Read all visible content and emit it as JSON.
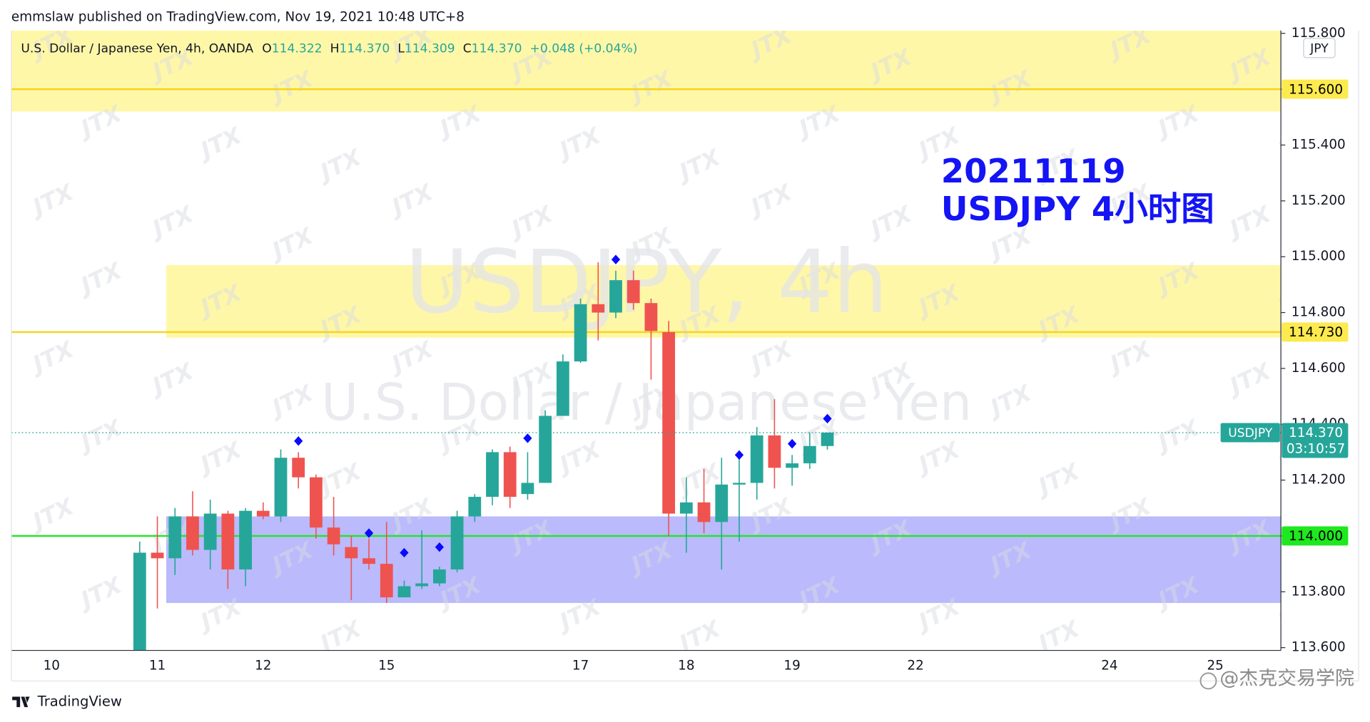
{
  "header": {
    "publisher": "emmslaw published on TradingView.com, Nov 19, 2021 10:48 UTC+8",
    "brand": "TradingView",
    "credit": "@杰克交易学院"
  },
  "chart_data": {
    "type": "candlestick",
    "symbol_line": "U.S. Dollar / Japanese Yen, 4h, OANDA",
    "ohlc_legend": [
      {
        "label": "O",
        "value": "114.322"
      },
      {
        "label": "H",
        "value": "114.370"
      },
      {
        "label": "L",
        "value": "114.309"
      },
      {
        "label": "C",
        "value": "114.370"
      }
    ],
    "change": "+0.048 (+0.04%)",
    "watermark_title": "USDJPY, 4h",
    "watermark_subtitle": "U.S. Dollar / Japanese Yen",
    "watermark_logo": "JTX",
    "annotation": [
      "20211119",
      "USDJPY 4小时图"
    ],
    "currency": "JPY",
    "categories": [
      null,
      null,
      "10",
      null,
      null,
      null,
      null,
      null,
      "11",
      null,
      null,
      null,
      null,
      null,
      "12",
      null,
      null,
      null,
      null,
      null,
      null,
      "15",
      null,
      null,
      null,
      null,
      null,
      null,
      null,
      null,
      null,
      null,
      "17",
      null,
      null,
      null,
      null,
      null,
      "18",
      null,
      null,
      null,
      null,
      null,
      "19",
      null,
      null,
      null,
      null,
      null,
      null,
      "22",
      null,
      null,
      null,
      null,
      null,
      null,
      null,
      null,
      null,
      null,
      "24",
      null,
      null,
      null,
      null,
      null,
      "25",
      null,
      null,
      null
    ],
    "open": [
      null,
      null,
      null,
      null,
      null,
      null,
      null,
      113.58,
      113.94,
      113.92,
      114.07,
      113.95,
      114.08,
      113.88,
      114.09,
      114.07,
      114.28,
      114.21,
      114.03,
      113.96,
      113.92,
      113.9,
      113.78,
      113.82,
      113.83,
      113.88,
      114.07,
      114.14,
      114.3,
      114.15,
      114.19,
      114.43,
      114.625,
      114.83,
      114.8,
      114.916,
      114.834,
      114.73,
      114.08,
      114.12,
      114.05,
      114.184,
      114.19,
      114.36,
      114.244,
      114.26,
      114.322,
      null,
      null,
      null,
      null,
      null,
      null,
      null,
      null,
      null,
      null,
      null,
      null,
      null,
      null,
      null,
      null,
      null,
      null,
      null,
      null,
      null,
      null,
      null,
      null,
      null
    ],
    "high": [
      null,
      null,
      null,
      null,
      null,
      null,
      null,
      113.98,
      114.07,
      114.1,
      114.16,
      114.13,
      114.09,
      114.1,
      114.12,
      114.31,
      114.3,
      114.22,
      114.14,
      114.0,
      113.99,
      114.05,
      113.84,
      114.02,
      113.89,
      114.09,
      114.15,
      114.31,
      114.32,
      114.3,
      114.45,
      114.65,
      114.85,
      114.98,
      114.95,
      114.95,
      114.85,
      114.77,
      114.21,
      114.24,
      114.28,
      114.29,
      114.39,
      114.49,
      114.29,
      114.37,
      114.37,
      null,
      null,
      null,
      null,
      null,
      null,
      null,
      null,
      null,
      null,
      null,
      null,
      null,
      null,
      null,
      null,
      null,
      null,
      null,
      null,
      null,
      null,
      null,
      null,
      null
    ],
    "low": [
      null,
      null,
      null,
      null,
      null,
      null,
      null,
      113.55,
      113.74,
      113.86,
      113.93,
      113.88,
      113.81,
      113.82,
      114.06,
      114.05,
      114.17,
      113.99,
      113.93,
      113.77,
      113.88,
      113.76,
      113.78,
      113.81,
      113.82,
      113.87,
      114.05,
      114.11,
      114.1,
      114.13,
      114.19,
      114.43,
      114.62,
      114.7,
      114.78,
      114.81,
      114.56,
      114.0,
      113.94,
      114.01,
      113.88,
      113.98,
      114.13,
      114.17,
      114.18,
      114.24,
      114.309,
      null,
      null,
      null,
      null,
      null,
      null,
      null,
      null,
      null,
      null,
      null,
      null,
      null,
      null,
      null,
      null,
      null,
      null,
      null,
      null,
      null,
      null,
      null,
      null,
      null
    ],
    "close": [
      null,
      null,
      null,
      null,
      null,
      null,
      null,
      113.94,
      113.92,
      114.07,
      113.95,
      114.08,
      113.88,
      114.09,
      114.07,
      114.28,
      114.21,
      114.03,
      113.97,
      113.92,
      113.9,
      113.78,
      113.82,
      113.83,
      113.88,
      114.07,
      114.14,
      114.3,
      114.14,
      114.19,
      114.43,
      114.625,
      114.83,
      114.8,
      114.916,
      114.834,
      114.734,
      114.08,
      114.12,
      114.05,
      114.184,
      114.19,
      114.36,
      114.244,
      114.26,
      114.322,
      114.37,
      null,
      null,
      null,
      null,
      null,
      null,
      null,
      null,
      null,
      null,
      null,
      null,
      null,
      null,
      null,
      null,
      null,
      null,
      null,
      null,
      null,
      null,
      null,
      null,
      null
    ],
    "markers": {
      "color": "#0a0aff",
      "values": [
        null,
        null,
        null,
        null,
        null,
        null,
        null,
        null,
        null,
        null,
        null,
        null,
        null,
        null,
        null,
        null,
        114.34,
        null,
        null,
        null,
        114.01,
        null,
        113.94,
        null,
        113.96,
        null,
        null,
        null,
        null,
        114.35,
        null,
        null,
        null,
        null,
        114.99,
        null,
        null,
        null,
        null,
        null,
        null,
        114.29,
        null,
        null,
        114.33,
        null,
        114.42,
        null,
        null,
        null,
        null,
        null,
        null,
        null,
        null,
        null,
        null,
        null,
        null,
        null,
        null,
        null,
        null,
        null,
        null,
        null,
        null,
        null,
        null,
        null,
        null,
        null
      ]
    },
    "up_color": "#26a69a",
    "down_color": "#ef5350",
    "ylim": [
      113.59,
      115.81
    ],
    "yticks": [
      {
        "value": 113.6,
        "label": "113.600"
      },
      {
        "value": 113.8,
        "label": "113.800"
      },
      {
        "value": 114.0,
        "label": "114.000"
      },
      {
        "value": 114.2,
        "label": "114.200"
      },
      {
        "value": 114.4,
        "label": "114.400"
      },
      {
        "value": 114.6,
        "label": "114.600"
      },
      {
        "value": 114.8,
        "label": "114.800"
      },
      {
        "value": 115.0,
        "label": "115.000"
      },
      {
        "value": 115.2,
        "label": "115.200"
      },
      {
        "value": 115.4,
        "label": "115.400"
      },
      {
        "value": 115.6,
        "label": "115.600"
      },
      {
        "value": 115.8,
        "label": "115.800"
      }
    ],
    "zones": [
      {
        "from": 115.52,
        "to": 115.81,
        "color": "#fff7a8",
        "start": null
      },
      {
        "from": 114.71,
        "to": 114.97,
        "color": "#fff7a8",
        "start": 9
      },
      {
        "from": 113.76,
        "to": 114.07,
        "color": "#babafc",
        "start": 9
      }
    ],
    "levels": [
      {
        "value": 115.6,
        "label": "115.600",
        "color": "#f5d518",
        "tag": "#fcea4f"
      },
      {
        "value": 114.73,
        "label": "114.730",
        "color": "#f5d518",
        "tag": "#fcea4f"
      },
      {
        "value": 114.0,
        "label": "114.000",
        "color": "#1ee81e",
        "tag": "#1ee81e"
      }
    ],
    "price_tag": {
      "symbol": "USDJPY",
      "price": "114.370",
      "countdown": "03:10:57"
    }
  }
}
